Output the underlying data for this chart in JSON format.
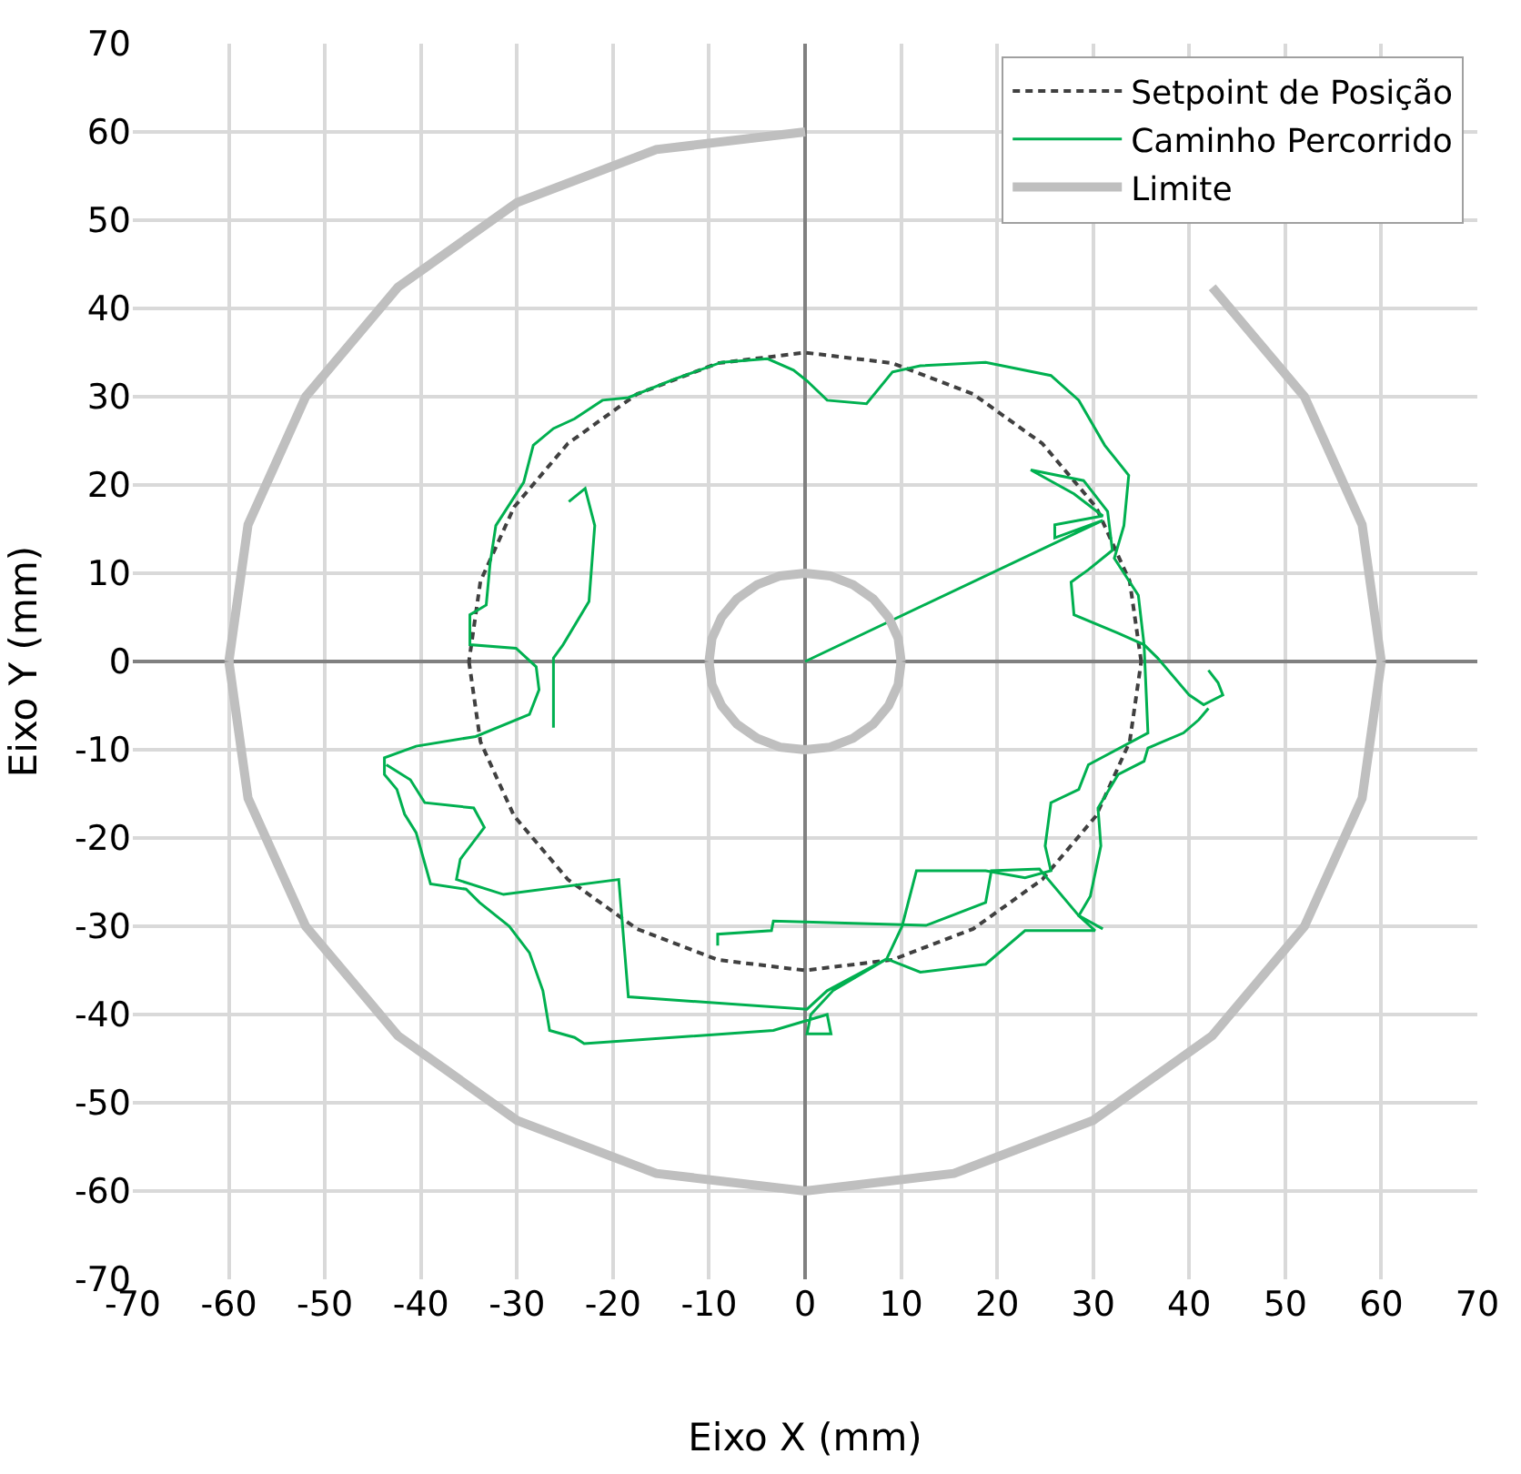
{
  "chart_data": {
    "type": "line",
    "xlabel": "Eixo X (mm)",
    "ylabel": "Eixo Y (mm)",
    "xlim": [
      -70,
      70
    ],
    "ylim": [
      -70,
      70
    ],
    "xticks": [
      -70,
      -60,
      -50,
      -40,
      -30,
      -20,
      -10,
      0,
      10,
      20,
      30,
      40,
      50,
      60,
      70
    ],
    "yticks": [
      -70,
      -60,
      -50,
      -40,
      -30,
      -20,
      -10,
      0,
      10,
      20,
      30,
      40,
      50,
      60,
      70
    ],
    "grid": true,
    "legend": "top right",
    "marker": "none",
    "series": [
      {
        "name": "Setpoint de Posição",
        "color": "#404040",
        "line_style": "dashed",
        "x": [
          35,
          33.8,
          30.3,
          24.7,
          17.5,
          9.1,
          0,
          -9.1,
          -17.5,
          -24.7,
          -30.3,
          -33.8,
          -35,
          null,
          -35,
          -33.8,
          -30.3,
          -24.7,
          -17.5,
          -9.1,
          0,
          9.1,
          17.5,
          24.7,
          30.3,
          33.8,
          35
        ],
        "values": [
          0,
          9.1,
          17.5,
          24.7,
          30.3,
          33.8,
          35,
          33.8,
          30.3,
          24.7,
          17.5,
          9.1,
          0,
          null,
          0,
          -9.1,
          -17.5,
          -24.7,
          -30.3,
          -33.8,
          -35,
          -33.8,
          -30.3,
          -24.7,
          -17.5,
          -9.1,
          0
        ]
      },
      {
        "name": "Caminho Percorrido",
        "color": "#00b050",
        "line_style": "solid",
        "x": [
          0,
          31,
          26,
          26,
          31,
          28,
          23.5,
          29,
          31.5,
          32,
          29.5,
          27.7,
          28,
          32.6,
          35.3,
          36.7,
          40,
          41.5,
          43.5,
          43,
          42,
          null,
          -24.6,
          -22.9,
          -21.9,
          -22.5,
          -25.2,
          -26.2,
          -26.2,
          null,
          42,
          41,
          39.4,
          35.7,
          35.3,
          32.6,
          30.5,
          30.8,
          29.7,
          28.5,
          30.2,
          22.9,
          18.8,
          12,
          8.5,
          2.9,
          0.6,
          0.2,
          2.7,
          2.3,
          -3.3,
          -23,
          -24,
          -26.6,
          -27.3,
          -28.7,
          -30.8,
          -33.9,
          -35.3,
          -39,
          -40.5,
          -41.7,
          -42.5,
          -43.8,
          -43.8,
          -40.5,
          -34.3,
          -28.7,
          -27.7,
          -28,
          -30.1,
          -34.9,
          -34.9,
          -33.2,
          -32.8,
          -32.2,
          -29.3,
          -28.3,
          -26.2,
          -24,
          -21.1,
          -18.4,
          -13.6,
          -8.7,
          -3.9,
          -1.2,
          0.2,
          2.3,
          6.4,
          9.1,
          12,
          18.8,
          25.6,
          28.5,
          31.2,
          33.7,
          33.2,
          32.2,
          34.7,
          35.3,
          35.7,
          29.5,
          28.5,
          25.6,
          25,
          25.6,
          22.9,
          18.8,
          11.6,
          10.1,
          8.5,
          2.3,
          0.2,
          -18.4,
          -19.4,
          -31.4,
          -36.3,
          -35.9,
          -33.4,
          -34.5,
          -39.6,
          -41.1,
          -43.6,
          null,
          -9.1,
          -9.1,
          -3.5,
          -3.3,
          12.6,
          18.8,
          19.4,
          24.4,
          28.5,
          31
        ],
        "values": [
          0,
          16,
          14,
          15.5,
          16.5,
          19,
          21.7,
          20.5,
          17,
          12.6,
          10.4,
          9,
          5.3,
          3.2,
          1.9,
          0.4,
          -3.8,
          -4.9,
          -3.8,
          -2.4,
          -1,
          null,
          18.1,
          19.6,
          15.4,
          6.8,
          1.9,
          0.4,
          -7.5,
          null,
          -5.3,
          -6.6,
          -8.1,
          -9.8,
          -11.3,
          -12.8,
          -16.6,
          -20.9,
          -26.6,
          -28.8,
          -30.5,
          -30.5,
          -34.3,
          -35.2,
          -33.7,
          -37.3,
          -40,
          -42.2,
          -42.2,
          -40,
          -41.8,
          -43.3,
          -42.6,
          -41.8,
          -37.3,
          -33,
          -30,
          -27.3,
          -25.8,
          -25.2,
          -19.4,
          -17.3,
          -14.5,
          -12.8,
          -10.9,
          -9.6,
          -8.5,
          -6,
          -3.2,
          -0.6,
          1.5,
          1.9,
          5.3,
          6.4,
          11.1,
          15.4,
          20.3,
          24.5,
          26.4,
          27.5,
          29.6,
          29.9,
          32,
          33.9,
          34.3,
          33,
          31.8,
          29.6,
          29.2,
          32.8,
          33.5,
          33.9,
          32.4,
          29.6,
          24.5,
          21.1,
          15.4,
          11.7,
          7.5,
          1.9,
          -8.1,
          -11.7,
          -14.5,
          -16,
          -20.9,
          -23.7,
          -24.5,
          -23.7,
          -23.7,
          -30,
          -33.7,
          -37.3,
          -39.4,
          -38,
          -24.7,
          -26.4,
          -24.7,
          -22.4,
          -18.8,
          -16.6,
          -16,
          -13.4,
          -11.7,
          null,
          -32.2,
          -30.9,
          -30.5,
          -29.4,
          -29.9,
          -27.3,
          -23.7,
          -23.5,
          -28.8,
          -30.3
        ]
      },
      {
        "name": "Limite",
        "color": "#bfbfbf",
        "line_style": "solid",
        "x": [
          60,
          58,
          52,
          42.4,
          null,
          null,
          null,
          0,
          -15.5,
          -30,
          -42.4,
          -52,
          -58,
          -60,
          null,
          -60,
          -58,
          -52,
          -42.4,
          -30,
          -15.5,
          0,
          15.5,
          30,
          42.4,
          52,
          58,
          60,
          null,
          10,
          9.7,
          8.7,
          7.1,
          5,
          2.6,
          0,
          -2.6,
          -5,
          -7.1,
          -8.7,
          -9.7,
          -10,
          null,
          -10,
          -9.7,
          -8.7,
          -7.1,
          -5,
          -2.6,
          0,
          2.6,
          5,
          7.1,
          8.7,
          9.7,
          10
        ],
        "values": [
          0,
          15.5,
          30,
          42.4,
          null,
          null,
          null,
          60,
          58,
          52,
          42.4,
          30,
          15.5,
          0,
          null,
          0,
          -15.5,
          -30,
          -42.4,
          -52,
          -58,
          -60,
          -58,
          -52,
          -42.4,
          -30,
          -15.5,
          0,
          null,
          0,
          2.6,
          5,
          7.1,
          8.7,
          9.7,
          10,
          9.7,
          8.7,
          7.1,
          5,
          2.6,
          0,
          null,
          0,
          -2.6,
          -5,
          -7.1,
          -8.7,
          -9.7,
          -10,
          -9.7,
          -8.7,
          -7.1,
          -5,
          -2.6,
          0
        ]
      }
    ]
  }
}
